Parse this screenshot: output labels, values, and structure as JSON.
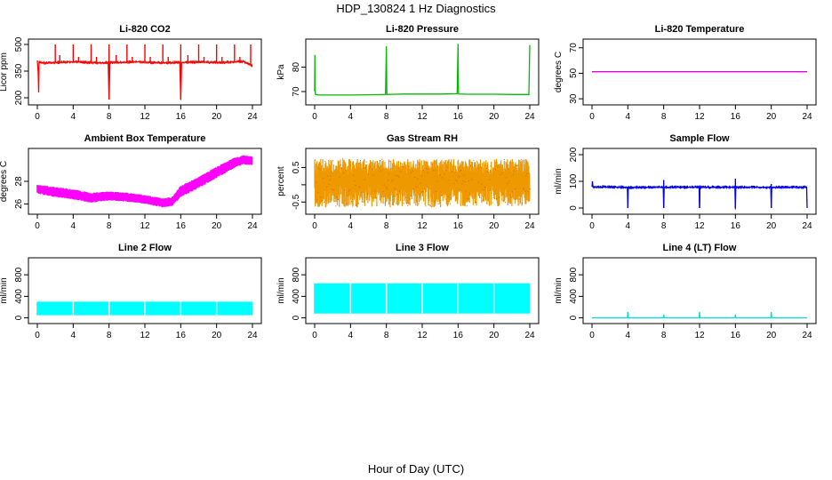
{
  "figure": {
    "title": "HDP_130824  1 Hz Diagnostics",
    "xlabel": "Hour of Day (UTC)"
  },
  "chart_data": [
    {
      "type": "line",
      "title": "Li-820 CO2",
      "ylabel": "Licor ppm",
      "color": "#ff0000",
      "xlim": [
        0,
        24
      ],
      "ylim": [
        180,
        510
      ],
      "xticks": [
        0,
        4,
        8,
        12,
        16,
        20,
        24
      ],
      "yticks": [
        200,
        350,
        500
      ],
      "series": [
        {
          "x": [
            0,
            0.1,
            0.15,
            0.2,
            1,
            2,
            3,
            4,
            5,
            6,
            7,
            7.9,
            8,
            8.1,
            9,
            10,
            11,
            12,
            13,
            14,
            15,
            15.9,
            16,
            16.1,
            17,
            18,
            19,
            20,
            21,
            22,
            23,
            24
          ],
          "y": [
            410,
            340,
            230,
            400,
            395,
            398,
            400,
            402,
            400,
            398,
            396,
            398,
            190,
            400,
            398,
            400,
            402,
            400,
            398,
            396,
            398,
            400,
            190,
            398,
            400,
            402,
            400,
            398,
            400,
            402,
            404,
            380
          ]
        }
      ],
      "spikes": [
        {
          "x": 2.0,
          "y": 500
        },
        {
          "x": 2.5,
          "y": 440
        },
        {
          "x": 4.0,
          "y": 500
        },
        {
          "x": 4.6,
          "y": 430
        },
        {
          "x": 6.0,
          "y": 500
        },
        {
          "x": 6.6,
          "y": 430
        },
        {
          "x": 8.0,
          "y": 500
        },
        {
          "x": 8.8,
          "y": 440
        },
        {
          "x": 10.0,
          "y": 500
        },
        {
          "x": 10.6,
          "y": 430
        },
        {
          "x": 12.0,
          "y": 500
        },
        {
          "x": 12.6,
          "y": 430
        },
        {
          "x": 14.0,
          "y": 500
        },
        {
          "x": 14.6,
          "y": 430
        },
        {
          "x": 16.0,
          "y": 500
        },
        {
          "x": 16.8,
          "y": 440
        },
        {
          "x": 18.0,
          "y": 500
        },
        {
          "x": 18.6,
          "y": 430
        },
        {
          "x": 20.0,
          "y": 500
        },
        {
          "x": 20.6,
          "y": 430
        },
        {
          "x": 22.0,
          "y": 500
        },
        {
          "x": 22.6,
          "y": 430
        },
        {
          "x": 23.8,
          "y": 500
        }
      ]
    },
    {
      "type": "line",
      "title": "Li-820 Pressure",
      "ylabel": "kPa",
      "color": "#00bb00",
      "xlim": [
        0,
        24
      ],
      "ylim": [
        66,
        90
      ],
      "xticks": [
        0,
        4,
        8,
        12,
        16,
        20,
        24
      ],
      "yticks": [
        70,
        80
      ],
      "series": [
        {
          "x": [
            0,
            0.02,
            0.05,
            0.1,
            0.5,
            2,
            4,
            6,
            7.9,
            8,
            8.05,
            9,
            10,
            12,
            14,
            15.9,
            16,
            16.05,
            17,
            18,
            20,
            22,
            23.9,
            24
          ],
          "y": [
            70,
            85,
            70,
            68.8,
            68.6,
            68.6,
            68.6,
            68.7,
            68.8,
            88.5,
            68.8,
            68.9,
            69.0,
            69.0,
            69.0,
            69.1,
            89.5,
            69.0,
            68.9,
            68.9,
            68.9,
            68.8,
            68.8,
            89.0
          ]
        }
      ]
    },
    {
      "type": "line",
      "title": "Li-820 Temperature",
      "ylabel": "degrees C",
      "color": "#dd00dd",
      "xlim": [
        0,
        24
      ],
      "ylim": [
        28,
        74
      ],
      "xticks": [
        0,
        4,
        8,
        12,
        16,
        20,
        24
      ],
      "yticks": [
        30,
        50,
        70
      ],
      "series": [
        {
          "x": [
            0,
            4,
            8,
            12,
            16,
            20,
            24
          ],
          "y": [
            51.2,
            51.2,
            51.2,
            51.2,
            51.2,
            51.2,
            51.2
          ]
        }
      ]
    },
    {
      "type": "area",
      "title": "Ambient Box Temperature",
      "ylabel": "degrees C",
      "color": "#ff00ff",
      "xlim": [
        0,
        24
      ],
      "ylim": [
        25.4,
        30.6
      ],
      "xticks": [
        0,
        4,
        8,
        12,
        16,
        20,
        24
      ],
      "yticks": [
        26,
        28
      ],
      "x": [
        0,
        2,
        4,
        6,
        8,
        10,
        12,
        14,
        15,
        16,
        18,
        20,
        22,
        23,
        24
      ],
      "upper": [
        27.7,
        27.5,
        27.3,
        27.0,
        27.1,
        27.0,
        26.8,
        26.5,
        26.6,
        27.6,
        28.4,
        29.3,
        30.1,
        30.3,
        30.2
      ],
      "lower": [
        26.9,
        26.6,
        26.4,
        26.1,
        26.3,
        26.2,
        26.0,
        25.7,
        25.8,
        26.6,
        27.4,
        28.3,
        29.2,
        29.5,
        29.4
      ]
    },
    {
      "type": "area",
      "title": "Gas Stream RH",
      "ylabel": "percent",
      "color": "#ee9900",
      "xlim": [
        0,
        24
      ],
      "ylim": [
        -0.75,
        0.95
      ],
      "xticks": [
        0,
        4,
        8,
        12,
        16,
        20,
        24
      ],
      "yticks": [
        -0.5,
        0.0,
        0.5
      ],
      "yticklabels": [
        "-0.5",
        "",
        "0.5"
      ],
      "x": [
        0,
        24
      ],
      "upper": [
        0.75,
        0.75
      ],
      "lower": [
        -0.65,
        -0.65
      ]
    },
    {
      "type": "line",
      "title": "Sample Flow",
      "ylabel": "ml/min",
      "color": "#0000ee",
      "xlim": [
        0,
        24
      ],
      "ylim": [
        -10,
        210
      ],
      "xticks": [
        0,
        4,
        8,
        12,
        16,
        20,
        24
      ],
      "yticks": [
        0,
        100,
        200
      ],
      "series": [
        {
          "x": [
            0,
            0.05,
            0.1,
            1,
            2,
            3,
            3.95,
            4,
            4.05,
            5,
            6,
            7,
            7.95,
            8,
            8.05,
            9,
            10,
            11,
            11.95,
            12,
            12.05,
            13,
            14,
            15,
            15.95,
            16,
            16.05,
            17,
            18,
            19,
            19.95,
            20,
            20.05,
            21,
            22,
            23,
            23.95,
            24
          ],
          "y": [
            80,
            100,
            80,
            79,
            79,
            78,
            78,
            0,
            77,
            78,
            78,
            78,
            78,
            0,
            78,
            78,
            78,
            78,
            78,
            0,
            78,
            78,
            78,
            78,
            78,
            0,
            78,
            78,
            78,
            78,
            78,
            0,
            78,
            78,
            78,
            78,
            78,
            0
          ]
        }
      ],
      "spikes": [
        {
          "x": 8,
          "y": 105
        },
        {
          "x": 16,
          "y": 110
        },
        {
          "x": 20,
          "y": 90
        },
        {
          "x": 12,
          "y": 85
        }
      ]
    },
    {
      "type": "area",
      "title": "Line 2 Flow",
      "ylabel": "ml/min",
      "color": "#00ffff",
      "xlim": [
        0,
        24
      ],
      "ylim": [
        -40,
        1050
      ],
      "xticks": [
        0,
        4,
        8,
        12,
        16,
        20,
        24
      ],
      "yticks": [
        0,
        400,
        800
      ],
      "x": [
        0,
        24
      ],
      "upper": [
        300,
        300
      ],
      "lower": [
        50,
        50
      ],
      "gaps": [
        0,
        4,
        8,
        12,
        16,
        20,
        24
      ]
    },
    {
      "type": "area",
      "title": "Line 3 Flow",
      "ylabel": "ml/min",
      "color": "#00ffff",
      "xlim": [
        0,
        24
      ],
      "ylim": [
        -40,
        1050
      ],
      "xticks": [
        0,
        4,
        8,
        12,
        16,
        20,
        24
      ],
      "yticks": [
        0,
        400,
        800
      ],
      "x": [
        0,
        24
      ],
      "upper": [
        640,
        640
      ],
      "lower": [
        80,
        80
      ],
      "gaps": [
        0,
        4,
        8,
        12,
        16,
        20,
        24
      ]
    },
    {
      "type": "line",
      "title": "Line 4 (LT) Flow",
      "ylabel": "ml/min",
      "color": "#00dddd",
      "xlim": [
        0,
        24
      ],
      "ylim": [
        -40,
        1050
      ],
      "xticks": [
        0,
        4,
        8,
        12,
        16,
        20,
        24
      ],
      "yticks": [
        0,
        400,
        800
      ],
      "series": [
        {
          "x": [
            0,
            3.95,
            4,
            4.05,
            7.95,
            8,
            8.05,
            11.95,
            12,
            12.05,
            15.95,
            16,
            16.05,
            19.95,
            20,
            20.05,
            24
          ],
          "y": [
            0,
            0,
            110,
            0,
            0,
            60,
            0,
            0,
            110,
            0,
            0,
            60,
            0,
            0,
            110,
            0,
            0
          ]
        }
      ]
    }
  ]
}
